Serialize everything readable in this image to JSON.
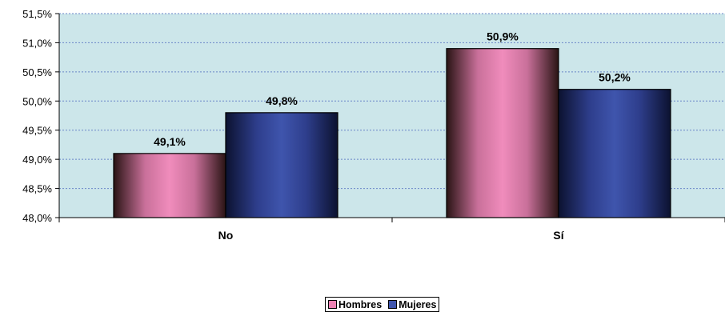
{
  "chart_data": {
    "type": "bar",
    "title": "",
    "xlabel": "",
    "ylabel": "",
    "categories": [
      "No",
      "Sí"
    ],
    "series": [
      {
        "name": "Hombres",
        "values": [
          49.1,
          50.9
        ],
        "color": "#ee82b4",
        "labels": [
          "49,1%",
          "50,9%"
        ]
      },
      {
        "name": "Mujeres",
        "values": [
          49.8,
          50.2
        ],
        "color": "#2f3f8f",
        "labels": [
          "49,8%",
          "50,2%"
        ]
      }
    ],
    "ylim": [
      48.0,
      51.5
    ],
    "yticks": [
      48.0,
      48.5,
      49.0,
      49.5,
      50.0,
      50.5,
      51.0,
      51.5
    ],
    "ytick_labels": [
      "48,0%",
      "48,5%",
      "49,0%",
      "49,5%",
      "50,0%",
      "50,5%",
      "51,0%",
      "51,5%"
    ],
    "grid": true,
    "plot_background": "#cce6ea",
    "gridline_color": "#6a86c8",
    "legend_position": "bottom"
  }
}
